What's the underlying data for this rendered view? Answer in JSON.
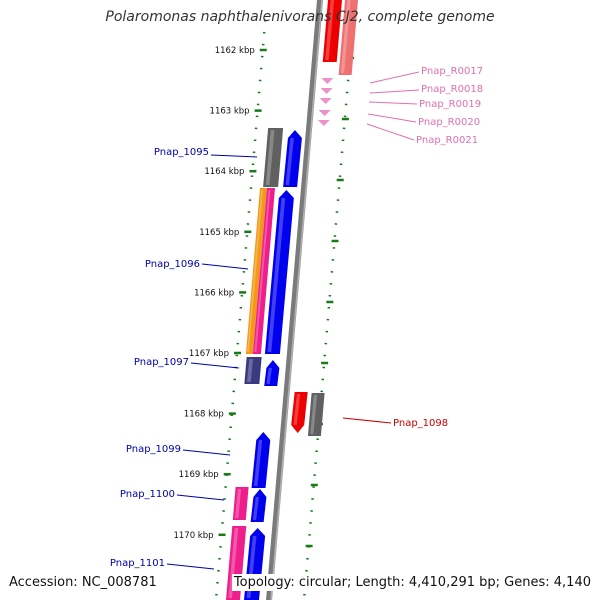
{
  "title": "Polaromonas naphthalenivorans CJ2, complete genome",
  "footer": {
    "accession": "Accession: NC_008781",
    "topology": "Topology: circular; Length: 4,410,291 bp; Genes: 4,140"
  },
  "colors": {
    "backbone": "#7a7a7a",
    "tick": "#1a7a1a",
    "forward_gene": "#0000ee",
    "gray_gene": "#606060",
    "purple_gene": "#3a3a80",
    "pink_gene": "#ee1f8c",
    "orange_gene": "#f29a18",
    "red_gene": "#ee0000",
    "light_red_gene": "#ee7070",
    "rna_gene": "#f090c8",
    "label_blue": "#0000aa",
    "label_red": "#cc0000",
    "label_pink": "#e070b0"
  },
  "kbp_labels": [
    "1162 kbp",
    "1163 kbp",
    "1164 kbp",
    "1165 kbp",
    "1166 kbp",
    "1167 kbp",
    "1168 kbp",
    "1169 kbp",
    "1170 kbp"
  ],
  "gene_labels": [
    {
      "text": "Pnap_R0017",
      "kind": "rna"
    },
    {
      "text": "Pnap_R0018",
      "kind": "rna"
    },
    {
      "text": "Pnap_R0019",
      "kind": "rna"
    },
    {
      "text": "Pnap_R0020",
      "kind": "rna"
    },
    {
      "text": "Pnap_R0021",
      "kind": "rna"
    },
    {
      "text": "Pnap_1095",
      "kind": "blue"
    },
    {
      "text": "Pnap_1096",
      "kind": "blue"
    },
    {
      "text": "Pnap_1097",
      "kind": "blue"
    },
    {
      "text": "Pnap_1098",
      "kind": "red"
    },
    {
      "text": "Pnap_1099",
      "kind": "blue"
    },
    {
      "text": "Pnap_1100",
      "kind": "blue"
    },
    {
      "text": "Pnap_1101",
      "kind": "blue"
    }
  ]
}
